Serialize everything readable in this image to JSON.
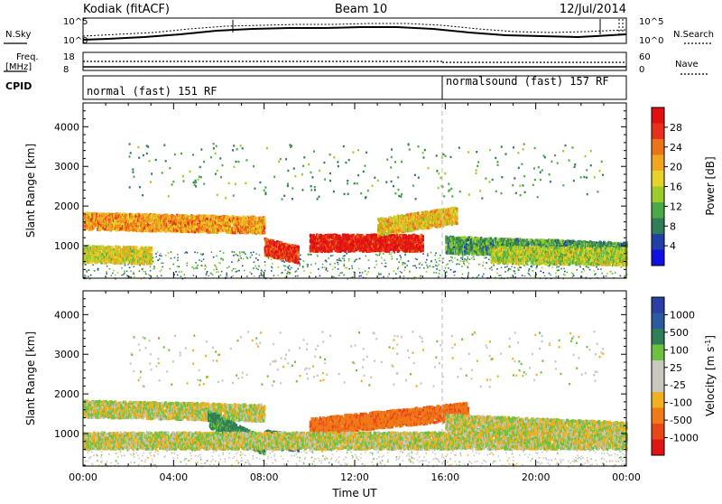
{
  "header": {
    "station": "Kodiak (fitACF)",
    "beam": "Beam 10",
    "date": "12/Jul/2014"
  },
  "noise_panel": {
    "left_label": "N.Sky",
    "right_label": "N.Search",
    "ytick_top": "10^5",
    "ytick_bottom": "10^0"
  },
  "freq_panel": {
    "left_label_line1": "Freq.",
    "left_label_line2": "[MHz]",
    "right_label": "Nave",
    "left_ticks": [
      "18",
      "8"
    ],
    "right_ticks": [
      "60",
      "0"
    ]
  },
  "cpid_panel": {
    "label": "CPID",
    "programs": [
      {
        "name": "normal (fast) 151 RF",
        "start_hour": 0
      },
      {
        "name": "normalsound (fast) 157 RF",
        "start_hour": 16
      }
    ]
  },
  "colors": {
    "power_scale": [
      "#1010e0",
      "#2040a8",
      "#2f7e57",
      "#4caa46",
      "#9ccc2c",
      "#e6d22a",
      "#f2a51f",
      "#ec7418",
      "#e8301c",
      "#e01010"
    ],
    "velocity_scale": [
      "#2a3fa6",
      "#2a5aa0",
      "#2f7e57",
      "#6cc140",
      "#c8c8c0",
      "#c8c8c0",
      "#f0b020",
      "#f07a18",
      "#e84818",
      "#e01414"
    ]
  },
  "chart_data": [
    {
      "type": "heatmap",
      "panel": "power",
      "ylabel": "Slant Range [km]",
      "colorbar_label": "Power [dB]",
      "colorbar_ticks": [
        "28",
        "24",
        "20",
        "16",
        "12",
        "8",
        "4"
      ],
      "color_range": [
        0,
        30
      ],
      "ylim": [
        180,
        4600
      ],
      "yticks": [
        1000,
        2000,
        3000,
        4000
      ],
      "xlim_hours": [
        0,
        24
      ],
      "xticks": [
        "00:00",
        "04:00",
        "08:00",
        "12:00",
        "16:00",
        "20:00",
        "00:00"
      ],
      "echo_bands": [
        {
          "t_start": 0,
          "t_end": 8,
          "range_start": 1650,
          "range_end": 1550,
          "value": 20
        },
        {
          "t_start": 0,
          "t_end": 3,
          "range_start": 820,
          "range_end": 780,
          "value": 16
        },
        {
          "t_start": 8,
          "t_end": 9.5,
          "range_start": 1000,
          "range_end": 800,
          "value": 26
        },
        {
          "t_start": 10,
          "t_end": 15,
          "range_start": 1100,
          "range_end": 1100,
          "value": 28
        },
        {
          "t_start": 13,
          "t_end": 16.5,
          "range_start": 1500,
          "range_end": 1800,
          "value": 18
        },
        {
          "t_start": 16,
          "t_end": 24,
          "range_start": 1050,
          "range_end": 900,
          "value": 10
        },
        {
          "t_start": 18,
          "t_end": 24,
          "range_start": 800,
          "range_end": 750,
          "value": 14
        }
      ]
    },
    {
      "type": "heatmap",
      "panel": "velocity",
      "ylabel": "Slant Range [km]",
      "xlabel": "Time UT",
      "colorbar_label": "Velocity [m s^-1]",
      "colorbar_ticks": [
        "1000",
        "500",
        "100",
        "25",
        "-25",
        "-100",
        "-500",
        "-1000"
      ],
      "ylim": [
        180,
        4600
      ],
      "yticks": [
        1000,
        2000,
        3000,
        4000
      ],
      "xlim_hours": [
        0,
        24
      ],
      "xticks": [
        "00:00",
        "04:00",
        "08:00",
        "12:00",
        "16:00",
        "20:00",
        "00:00"
      ],
      "echo_bands": [
        {
          "t_start": 0,
          "t_end": 8,
          "range_start": 1650,
          "range_end": 1550,
          "value": 0
        },
        {
          "t_start": 5.5,
          "t_end": 8,
          "range_start": 1400,
          "range_end": 700,
          "value": 150
        },
        {
          "t_start": 8,
          "t_end": 9.5,
          "range_start": 900,
          "range_end": 800,
          "value": 300
        },
        {
          "t_start": 10,
          "t_end": 17,
          "range_start": 1200,
          "range_end": 1600,
          "value": -250
        },
        {
          "t_start": 16,
          "t_end": 24,
          "range_start": 1300,
          "range_end": 1100,
          "value": 0
        },
        {
          "t_start": 0,
          "t_end": 24,
          "range_start": 850,
          "range_end": 850,
          "value": 0
        }
      ]
    }
  ]
}
